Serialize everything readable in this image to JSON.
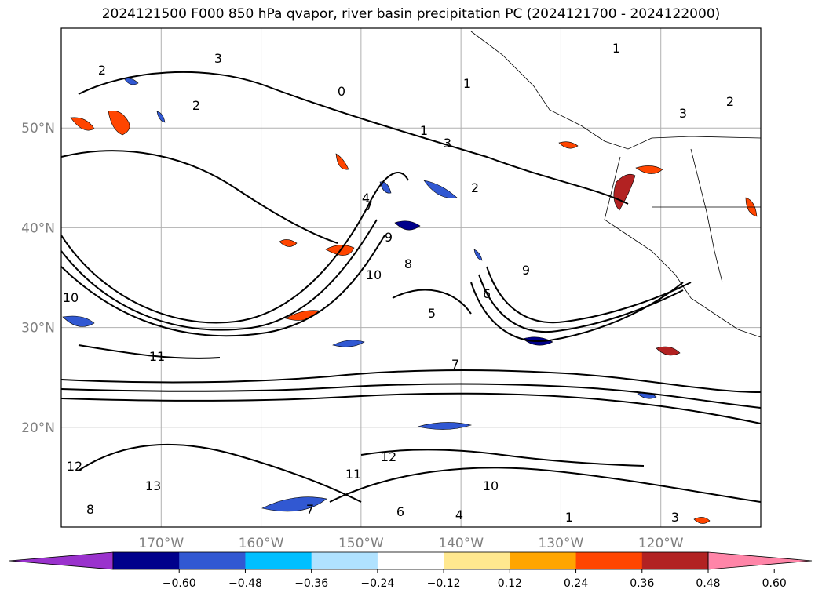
{
  "title": "2024121500 F000 850 hPa qvapor, river basin precipitation PC (2024121700 - 2024122000)",
  "map": {
    "lon_range": [
      -180,
      -110
    ],
    "lat_range": [
      10,
      60
    ],
    "lat_ticks": [
      {
        "lat": 20,
        "label": "20°N"
      },
      {
        "lat": 30,
        "label": "30°N"
      },
      {
        "lat": 40,
        "label": "40°N"
      },
      {
        "lat": 50,
        "label": "50°N"
      }
    ],
    "lon_ticks": [
      {
        "lon": -170,
        "label": "170°W"
      },
      {
        "lon": -160,
        "label": "160°W"
      },
      {
        "lon": -150,
        "label": "150°W"
      },
      {
        "lon": -140,
        "label": "140°W"
      },
      {
        "lon": -130,
        "label": "130°W"
      },
      {
        "lon": -120,
        "label": "120°W"
      }
    ],
    "gridlines": true,
    "contour_labels": [
      "1",
      "2",
      "3",
      "0",
      "2",
      "1",
      "3",
      "2",
      "1",
      "2",
      "3",
      "4",
      "7",
      "9",
      "10",
      "8",
      "5",
      "6",
      "7",
      "10",
      "11",
      "12",
      "13",
      "12",
      "11",
      "10",
      "8",
      "7",
      "6",
      "4",
      "1",
      "3",
      "9"
    ]
  },
  "colorbar": {
    "ticks": [
      "−0.60",
      "−0.48",
      "−0.36",
      "−0.24",
      "−0.12",
      "0.12",
      "0.24",
      "0.36",
      "0.48",
      "0.60"
    ],
    "colors": [
      "#9a32cd",
      "#00008b",
      "#3158d2",
      "#00bfff",
      "#b0e2ff",
      "#ffffff",
      "#ffe88f",
      "#ffa500",
      "#ff4500",
      "#b22222",
      "#ff85a8"
    ],
    "extend": "both"
  }
}
